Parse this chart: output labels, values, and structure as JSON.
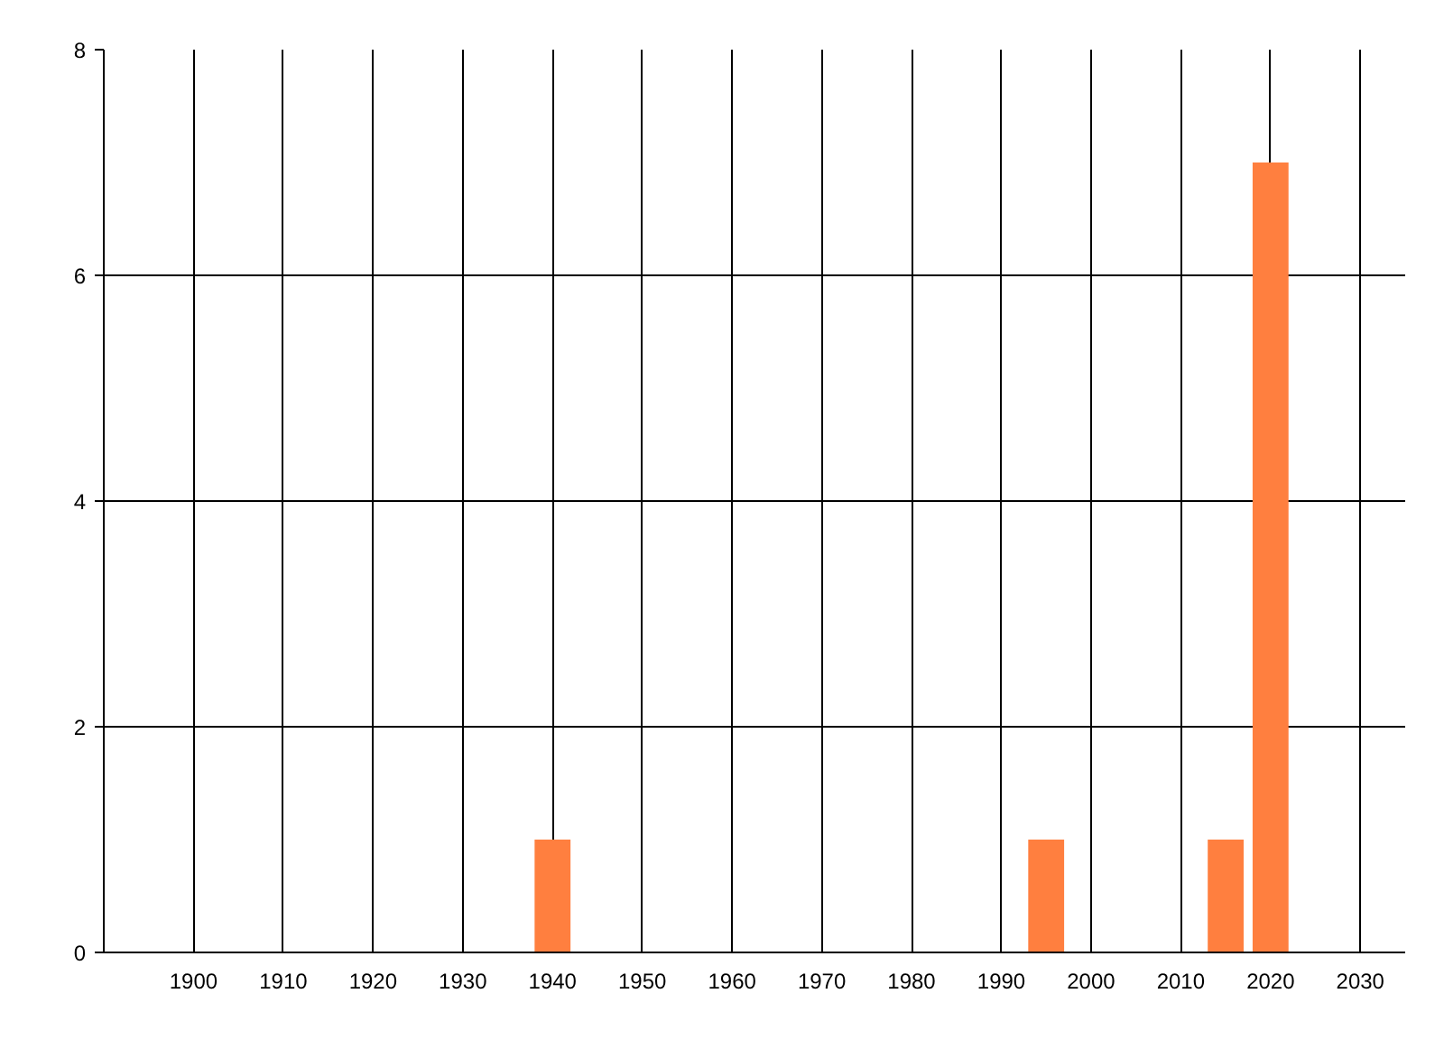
{
  "chart_data": {
    "type": "bar",
    "x": [
      1940,
      1995,
      2015,
      2020
    ],
    "values": [
      1,
      1,
      1,
      7
    ],
    "color": "#ff7f3f",
    "xlim": [
      1890,
      2035
    ],
    "xticks": [
      1900,
      1910,
      1920,
      1930,
      1940,
      1950,
      1960,
      1970,
      1980,
      1990,
      2000,
      2010,
      2020,
      2030
    ],
    "ylim": [
      0,
      8
    ],
    "yticks": [
      0,
      2,
      4,
      6,
      8
    ],
    "grid": true
  }
}
